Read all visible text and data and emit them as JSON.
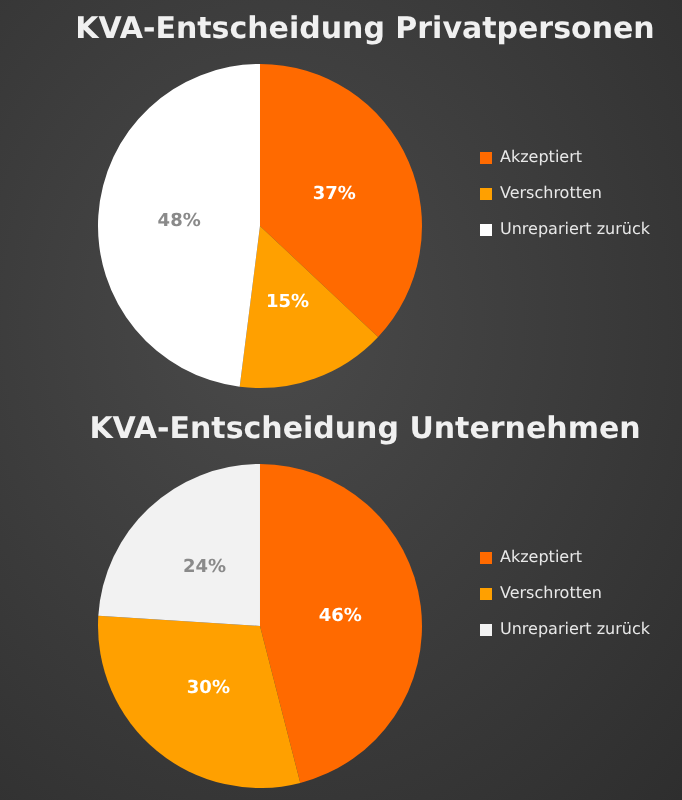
{
  "chart_data": [
    {
      "type": "pie",
      "title": "KVA-Entscheidung Privatpersonen",
      "categories": [
        "Akzeptiert",
        "Verschrotten",
        "Unrepariert zurück"
      ],
      "values": [
        37,
        15,
        48
      ],
      "value_labels": [
        "37%",
        "15%",
        "48%"
      ],
      "colors": [
        "#ff6a00",
        "#ffa000",
        "#ffffff"
      ],
      "legend": "right"
    },
    {
      "type": "pie",
      "title": "KVA-Entscheidung Unternehmen",
      "categories": [
        "Akzeptiert",
        "Verschrotten",
        "Unrepariert zurück"
      ],
      "values": [
        46,
        30,
        24
      ],
      "value_labels": [
        "46%",
        "30%",
        "24%"
      ],
      "colors": [
        "#ff6a00",
        "#ffa000",
        "#f2f2f2"
      ],
      "legend": "right"
    }
  ]
}
